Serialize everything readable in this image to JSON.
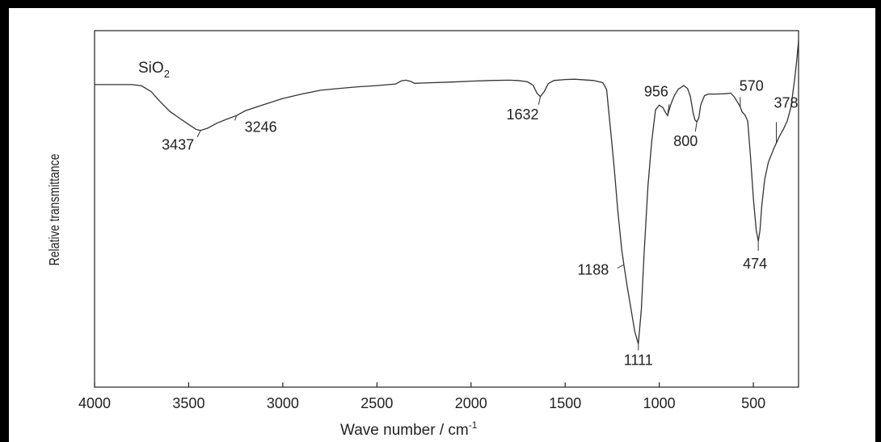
{
  "chart_data": {
    "type": "line",
    "title": "SiO",
    "title_subscript": "2",
    "xlabel": "Wave number / cm",
    "xlabel_superscript": "-1",
    "ylabel": "Relative transmittance",
    "xlim": [
      4000,
      260
    ],
    "x_reversed": true,
    "ylim": [
      0,
      100
    ],
    "y_ticks_labeled": false,
    "x_ticks": [
      4000,
      3500,
      3000,
      2500,
      2000,
      1500,
      1000,
      500
    ],
    "grid": false,
    "line_color": "#333333",
    "series": [
      {
        "x": [
          4000,
          3800,
          3750,
          3700,
          3650,
          3600,
          3550,
          3500,
          3460,
          3437,
          3400,
          3350,
          3300,
          3246,
          3200,
          3100,
          3000,
          2900,
          2800,
          2700,
          2600,
          2500,
          2400,
          2370,
          2345,
          2320,
          2300,
          2250,
          2100,
          2000,
          1900,
          1800,
          1750,
          1700,
          1670,
          1650,
          1632,
          1610,
          1590,
          1560,
          1500,
          1450,
          1350,
          1300,
          1280,
          1260,
          1240,
          1220,
          1200,
          1188,
          1170,
          1150,
          1130,
          1111,
          1095,
          1080,
          1060,
          1040,
          1020,
          1000,
          980,
          970,
          956,
          940,
          920,
          900,
          870,
          850,
          835,
          820,
          810,
          800,
          790,
          780,
          760,
          740,
          700,
          650,
          620,
          600,
          580,
          570,
          560,
          545,
          530,
          515,
          500,
          485,
          474,
          465,
          455,
          440,
          420,
          400,
          390,
          378,
          360,
          340,
          320,
          300,
          290,
          280,
          270,
          260
        ],
        "y": [
          86.0,
          86.0,
          85.6,
          83.8,
          80.5,
          77.5,
          75.4,
          73.4,
          71.8,
          71.5,
          72.2,
          73.8,
          75.0,
          76.2,
          77.7,
          79.7,
          81.6,
          83.0,
          84.2,
          84.8,
          85.3,
          85.7,
          86.2,
          87.2,
          87.4,
          87.0,
          86.4,
          86.5,
          86.8,
          87.1,
          87.3,
          87.4,
          87.3,
          86.9,
          85.8,
          83.3,
          82.2,
          83.9,
          86.3,
          87.3,
          87.6,
          87.7,
          87.3,
          86.6,
          84.5,
          72.5,
          60.0,
          46.0,
          34.0,
          29.0,
          22.0,
          15.0,
          7.8,
          4.0,
          15.0,
          33.0,
          54.0,
          68.0,
          78.0,
          79.5,
          78.7,
          77.5,
          76.2,
          79.5,
          82.5,
          84.5,
          85.7,
          84.8,
          82.3,
          77.0,
          74.8,
          74.2,
          75.5,
          79.5,
          82.5,
          83.0,
          83.0,
          83.1,
          83.3,
          82.0,
          80.0,
          79.0,
          77.4,
          76.4,
          74.5,
          63.0,
          50.0,
          40.0,
          36.5,
          40.0,
          48.0,
          56.0,
          61.5,
          64.5,
          66.0,
          67.5,
          69.8,
          72.0,
          74.5,
          79.0,
          83.5,
          88.0,
          93.5,
          100.0
        ]
      }
    ],
    "annotations": [
      {
        "x": 3437,
        "label": "3437"
      },
      {
        "x": 3246,
        "label": "3246"
      },
      {
        "x": 1632,
        "label": "1632"
      },
      {
        "x": 1188,
        "label": "1188"
      },
      {
        "x": 1111,
        "label": "1111"
      },
      {
        "x": 956,
        "label": "956"
      },
      {
        "x": 800,
        "label": "800"
      },
      {
        "x": 570,
        "label": "570"
      },
      {
        "x": 474,
        "label": "474"
      },
      {
        "x": 378,
        "label": "378"
      }
    ]
  }
}
